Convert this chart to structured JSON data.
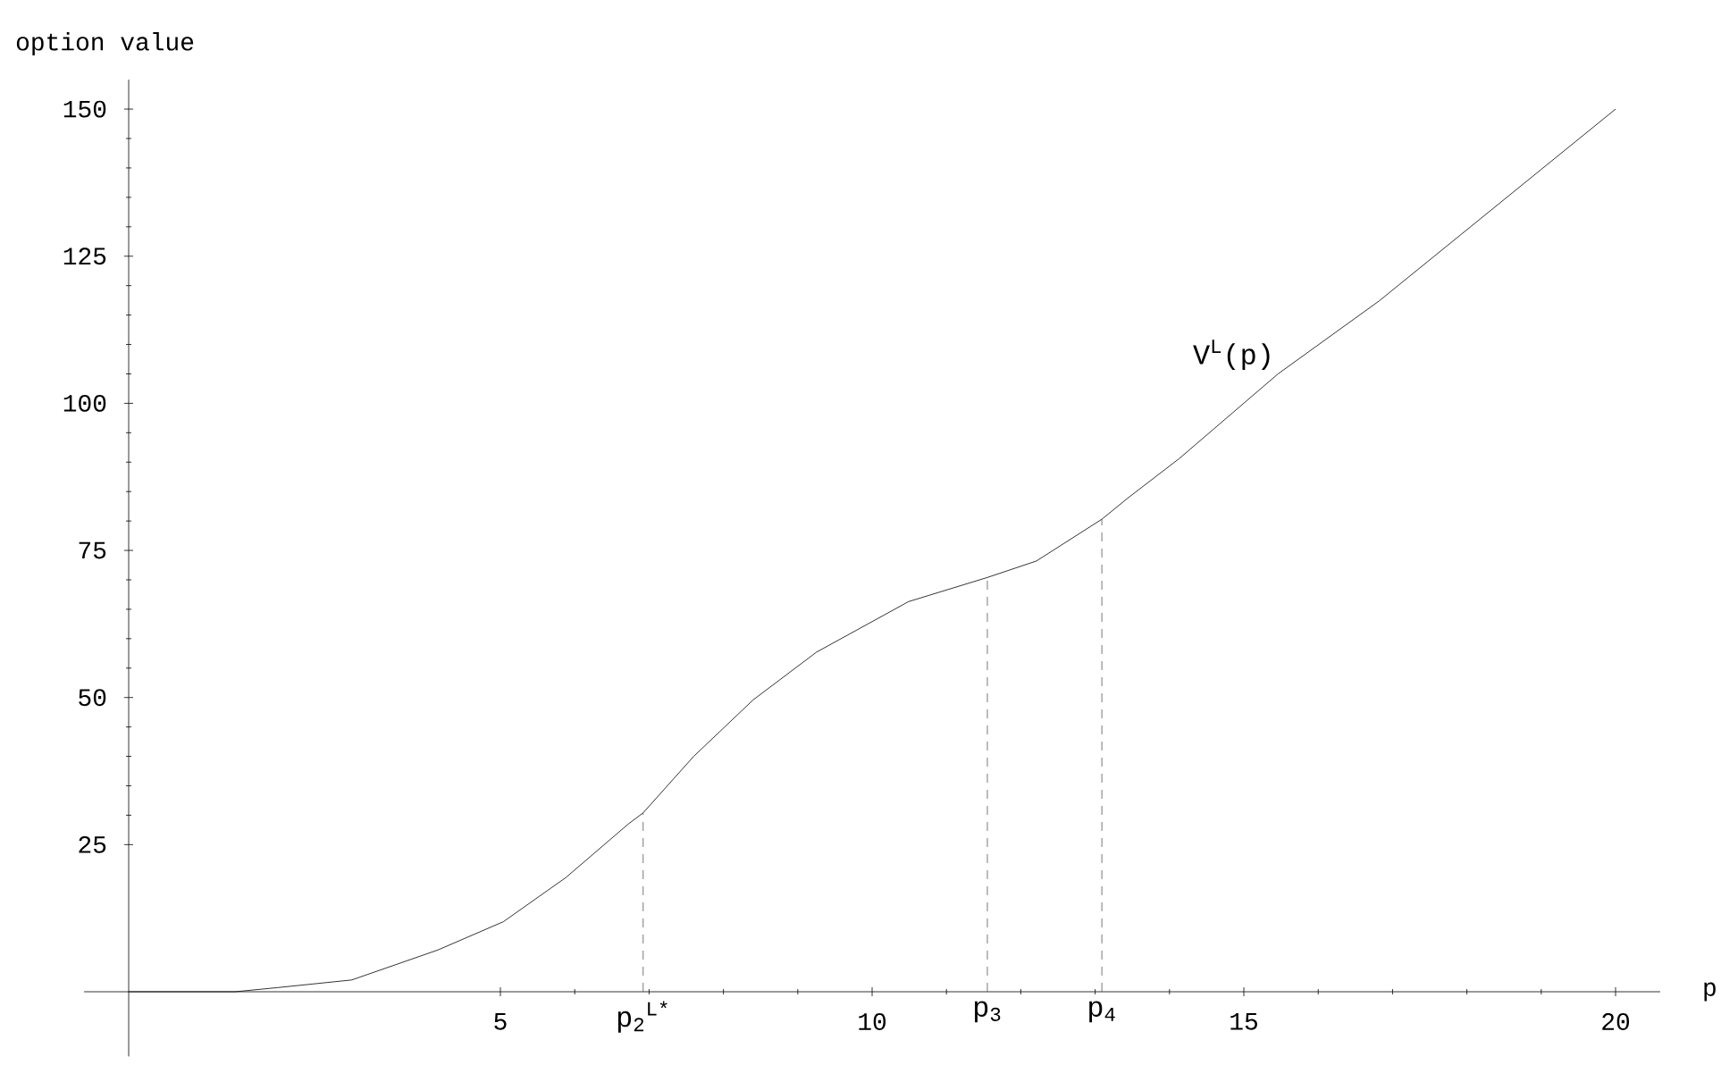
{
  "chart_data": {
    "type": "line",
    "xlabel": "p",
    "ylabel": "option value",
    "xlim": [
      -0.6,
      20.6
    ],
    "ylim": [
      -11,
      155
    ],
    "xticks": [
      5,
      10,
      15,
      20
    ],
    "yticks": [
      25,
      50,
      75,
      100,
      125,
      150
    ],
    "series": [
      {
        "name": "V$^{L}$(p)",
        "color": "#000000",
        "line_style": "solid",
        "x": [
          0,
          1.43,
          2.0,
          3.0,
          4.16,
          5.04,
          5.88,
          6.72,
          6.92,
          7.6,
          8.4,
          9.25,
          10.49,
          11.55,
          12.21,
          13.09,
          13.45,
          14.13,
          15.46,
          16.82,
          20
        ],
        "values": [
          0,
          0,
          0.7,
          2.0,
          7.1,
          11.9,
          19.4,
          28.5,
          30.4,
          40,
          49.6,
          57.7,
          66.3,
          70.4,
          73.2,
          80.3,
          84.0,
          90.6,
          105,
          117.4,
          150
        ]
      },
      {
        "color": "#555555",
        "line_style": "dashed",
        "x": [
          6.92,
          6.92
        ],
        "values": [
          0,
          30.4
        ]
      },
      {
        "color": "#555555",
        "line_style": "dashed",
        "x": [
          11.55,
          11.55
        ],
        "values": [
          0,
          70.4
        ]
      },
      {
        "color": "#555555",
        "line_style": "dashed",
        "x": [
          13.09,
          13.09
        ],
        "values": [
          0,
          80.3
        ]
      }
    ],
    "annotations": [
      {
        "text": "p$_{2}$$^{L*}$",
        "x": 6.92,
        "y": 0
      },
      {
        "text": "p$_{3}$",
        "x": 11.55,
        "y": 0
      },
      {
        "text": "p$_{4}$",
        "x": 13.09,
        "y": 0
      }
    ]
  }
}
